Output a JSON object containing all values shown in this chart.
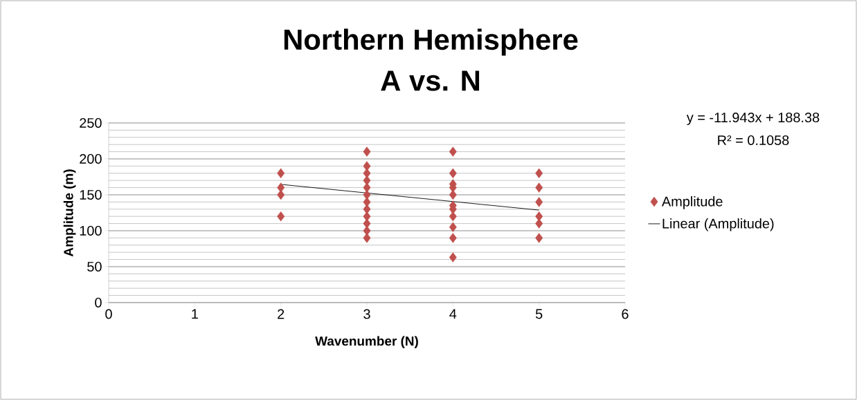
{
  "chart_data": {
    "type": "scatter",
    "title": "Northern Hemisphere",
    "subtitle": "A vs. N",
    "xlabel": "Wavenumber (N)",
    "ylabel": "Amplitude (m)",
    "xlim": [
      0,
      6
    ],
    "xticks": [
      0,
      1,
      2,
      3,
      4,
      5,
      6
    ],
    "ylim": [
      0,
      250
    ],
    "yticks": [
      0,
      50,
      100,
      150,
      200,
      250
    ],
    "grid": "y",
    "legend": "right",
    "annotations": [
      "y = -11.943x + 188.38",
      "R² = 0.1058"
    ],
    "series": [
      {
        "name": "Amplitude",
        "marker": "diamond",
        "color": "#c0504d",
        "x": [
          2,
          2,
          2,
          2,
          3,
          3,
          3,
          3,
          3,
          3,
          3,
          3,
          3,
          3,
          3,
          3,
          4,
          4,
          4,
          4,
          4,
          4,
          4,
          4,
          4,
          4,
          4,
          5,
          5,
          5,
          5,
          5,
          5
        ],
        "values": [
          180,
          160,
          150,
          120,
          210,
          190,
          180,
          170,
          160,
          150,
          140,
          130,
          120,
          110,
          100,
          90,
          210,
          180,
          165,
          160,
          150,
          135,
          130,
          120,
          105,
          90,
          63,
          180,
          160,
          140,
          120,
          110,
          90
        ]
      },
      {
        "name": "Linear (Amplitude)",
        "type": "line",
        "marker": "none",
        "line_style": "solid",
        "color": "#000000",
        "x": [
          2,
          5
        ],
        "values": [
          164.5,
          128.7
        ]
      }
    ]
  }
}
